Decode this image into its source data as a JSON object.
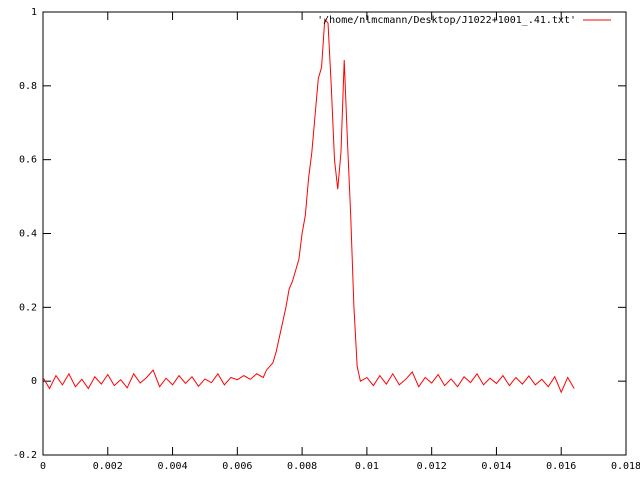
{
  "chart_data": {
    "type": "line",
    "x": [
      0,
      0.0002,
      0.0004,
      0.0006,
      0.0008,
      0.001,
      0.0012,
      0.0014,
      0.0016,
      0.0018,
      0.002,
      0.0022,
      0.0024,
      0.0026,
      0.0028,
      0.003,
      0.0032,
      0.0034,
      0.0036,
      0.0038,
      0.004,
      0.0042,
      0.0044,
      0.0046,
      0.0048,
      0.005,
      0.0052,
      0.0054,
      0.0056,
      0.0058,
      0.006,
      0.0062,
      0.0064,
      0.0066,
      0.0068,
      0.0069,
      0.007,
      0.0071,
      0.0072,
      0.0073,
      0.0074,
      0.0075,
      0.0076,
      0.0077,
      0.0078,
      0.0079,
      0.008,
      0.0081,
      0.0082,
      0.0083,
      0.0084,
      0.0085,
      0.0086,
      0.0087,
      0.0088,
      0.0089,
      0.009,
      0.0091,
      0.0092,
      0.0093,
      0.0094,
      0.0095,
      0.0096,
      0.0097,
      0.0098,
      0.01,
      0.0102,
      0.0104,
      0.0106,
      0.0108,
      0.011,
      0.0112,
      0.0114,
      0.0116,
      0.0118,
      0.012,
      0.0122,
      0.0124,
      0.0126,
      0.0128,
      0.013,
      0.0132,
      0.0134,
      0.0136,
      0.0138,
      0.014,
      0.0142,
      0.0144,
      0.0146,
      0.0148,
      0.015,
      0.0152,
      0.0154,
      0.0156,
      0.0158,
      0.016,
      0.0162,
      0.0164
    ],
    "series": [
      {
        "name": "'/home/nlmcmann/Desktop/J1022+1001_.41.txt'",
        "color": "#ff0000",
        "values": [
          0.01,
          -0.02,
          0.015,
          -0.01,
          0.02,
          -0.015,
          0.005,
          -0.02,
          0.012,
          -0.008,
          0.018,
          -0.012,
          0.004,
          -0.018,
          0.02,
          -0.005,
          0.01,
          0.03,
          -0.015,
          0.008,
          -0.01,
          0.015,
          -0.006,
          0.012,
          -0.014,
          0.006,
          -0.004,
          0.02,
          -0.01,
          0.01,
          0.004,
          0.015,
          0.005,
          0.02,
          0.01,
          0.03,
          0.04,
          0.05,
          0.08,
          0.12,
          0.16,
          0.2,
          0.25,
          0.27,
          0.3,
          0.33,
          0.4,
          0.45,
          0.55,
          0.62,
          0.72,
          0.82,
          0.85,
          0.98,
          0.97,
          0.8,
          0.6,
          0.52,
          0.62,
          0.87,
          0.65,
          0.45,
          0.2,
          0.04,
          0.0,
          0.01,
          -0.012,
          0.015,
          -0.008,
          0.02,
          -0.01,
          0.005,
          0.025,
          -0.015,
          0.01,
          -0.005,
          0.018,
          -0.012,
          0.006,
          -0.015,
          0.012,
          -0.004,
          0.02,
          -0.01,
          0.008,
          -0.006,
          0.015,
          -0.012,
          0.01,
          -0.008,
          0.014,
          -0.01,
          0.005,
          -0.015,
          0.012,
          -0.03,
          0.01,
          -0.02
        ]
      }
    ],
    "xlim": [
      0,
      0.018
    ],
    "xticks": [
      0,
      0.002,
      0.004,
      0.006,
      0.008,
      0.01,
      0.012,
      0.014,
      0.016,
      0.018
    ],
    "ylim": [
      -0.2,
      1
    ],
    "yticks": [
      -0.2,
      0,
      0.2,
      0.4,
      0.6,
      0.8,
      1
    ],
    "legend": "top-right"
  }
}
